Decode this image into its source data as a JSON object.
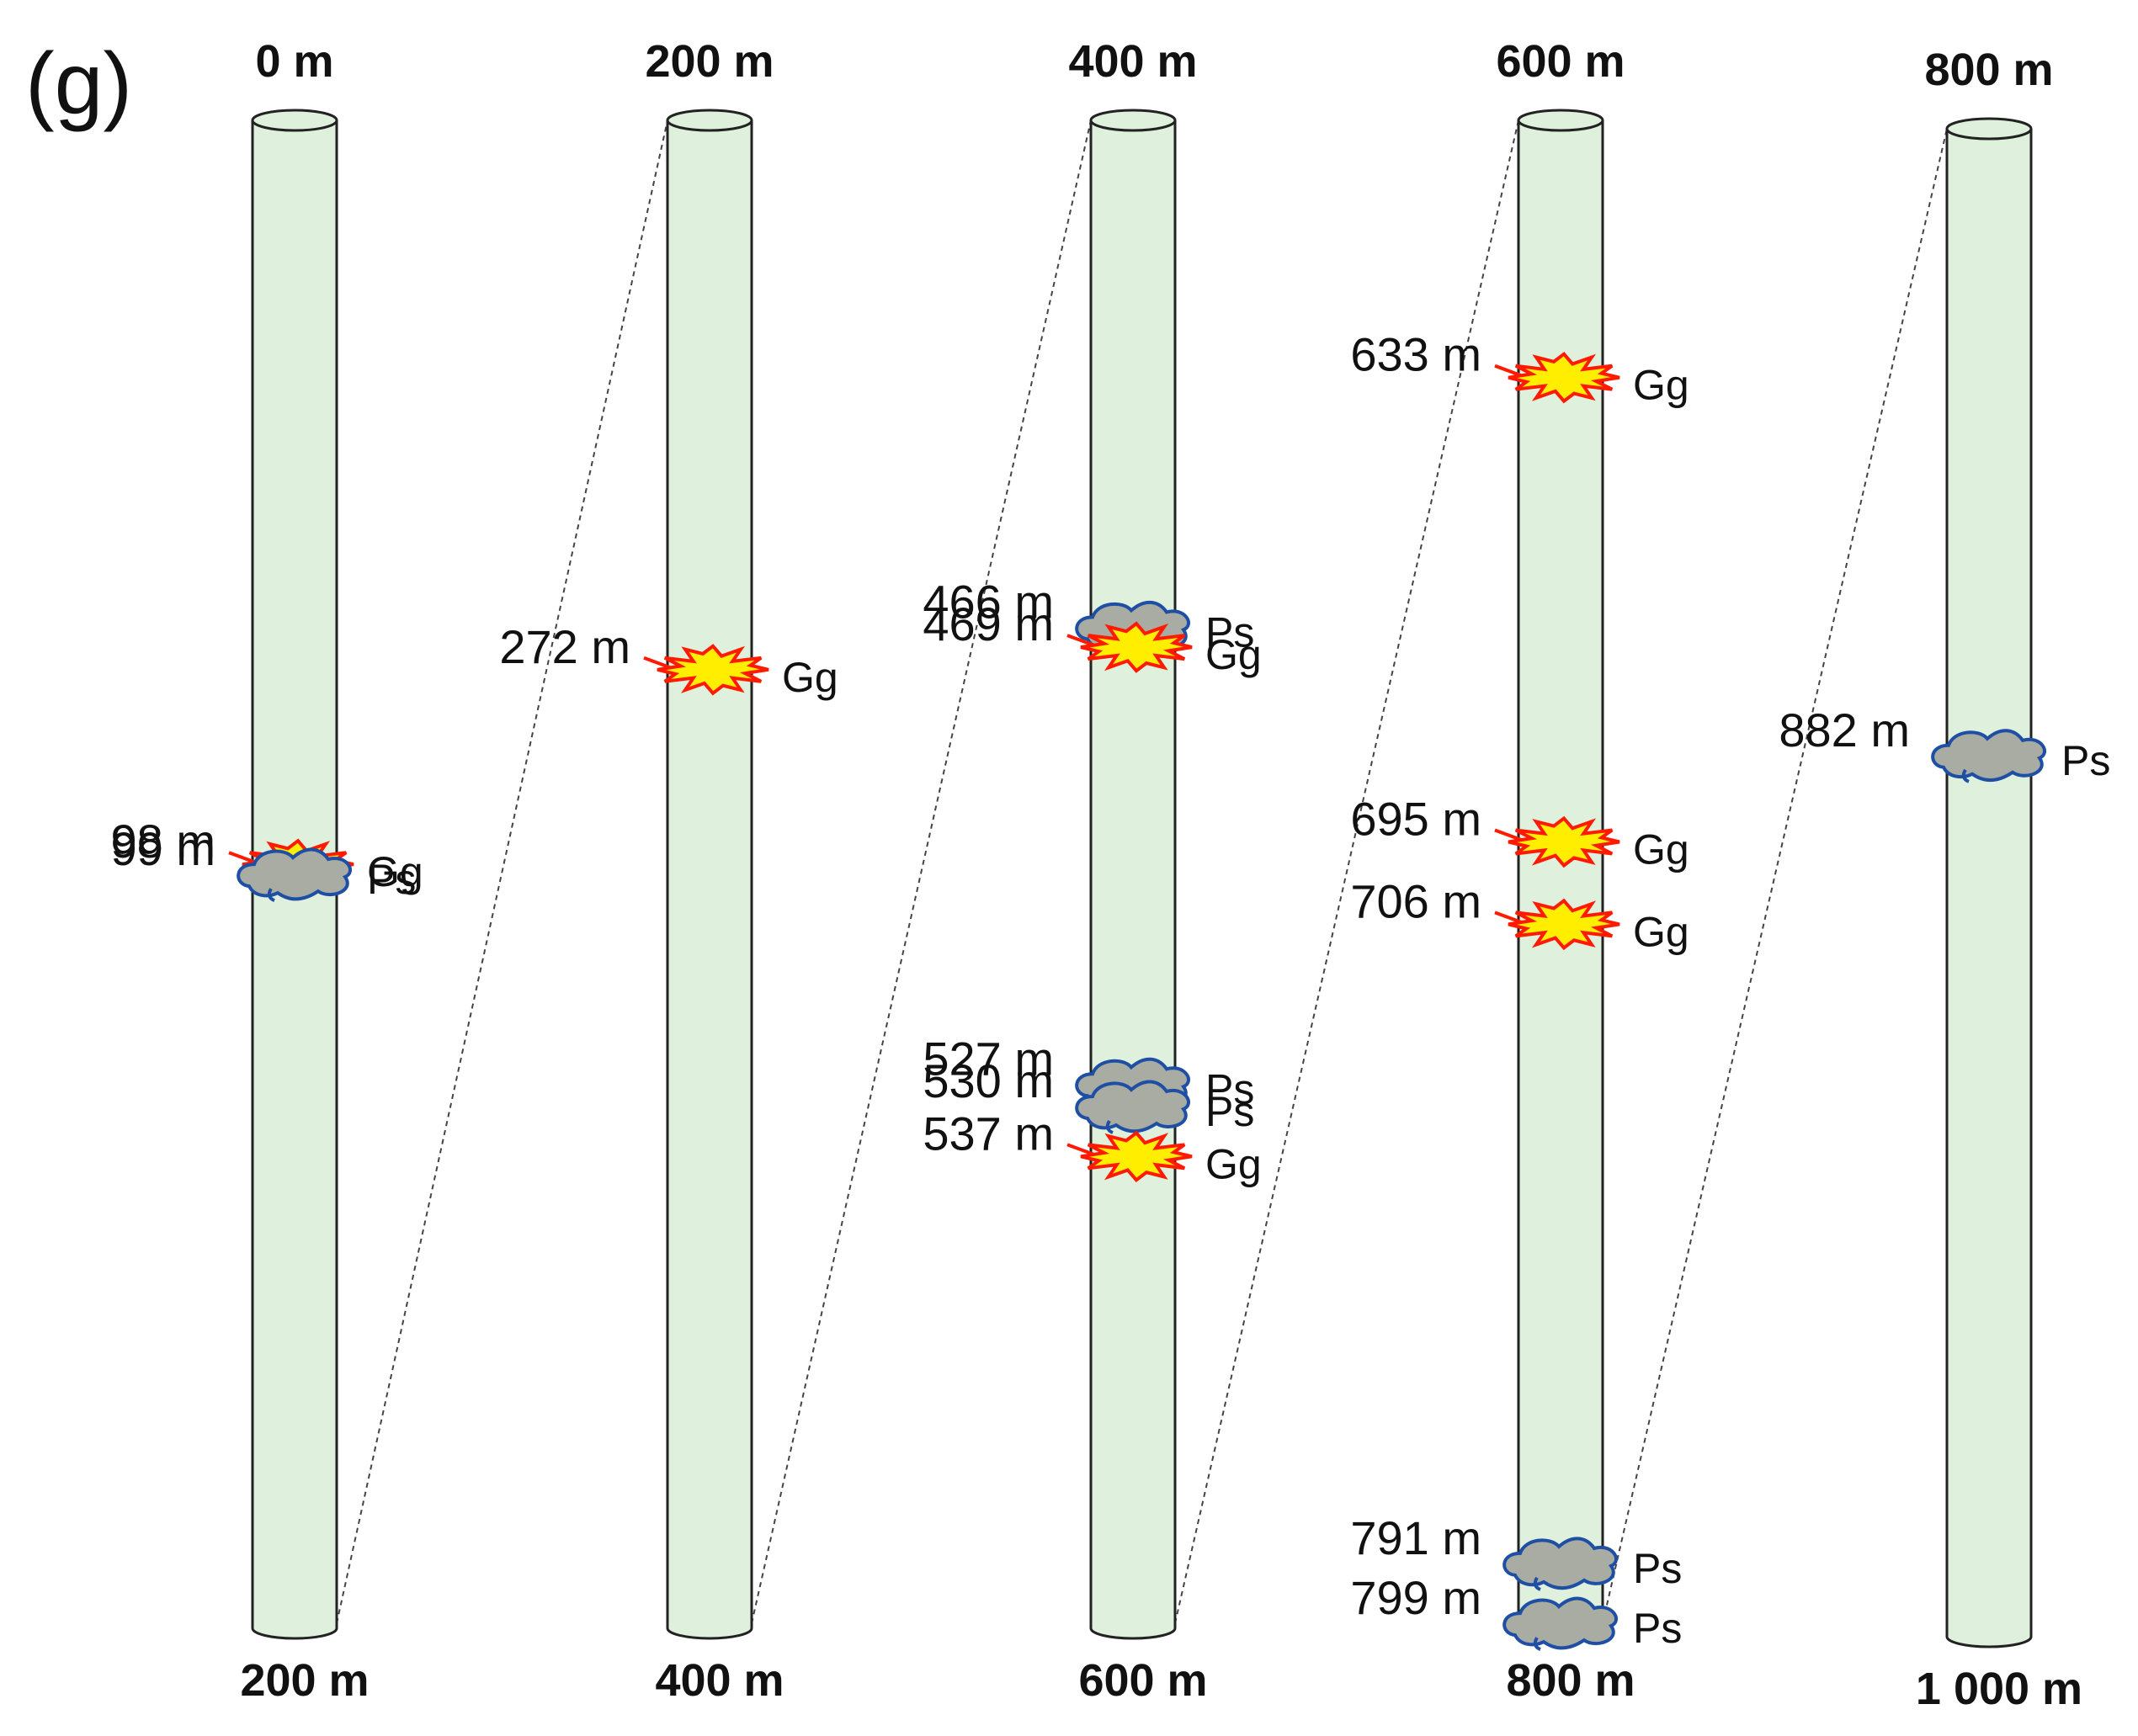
{
  "panel_label": "(g)",
  "colors": {
    "column_fill": "#dff0dc",
    "column_stroke": "#222222",
    "gg_fill": "#ffee00",
    "gg_stroke": "#ff1a00",
    "ps_fill": "#a9aca2",
    "ps_stroke": "#1f4fa5"
  },
  "columns": [
    {
      "top_label": "0 m",
      "bottom_label": "200 m",
      "events": [
        {
          "depth_label": "98 m",
          "code": "Gg",
          "type": "gg",
          "depth": 98
        },
        {
          "depth_label": "99 m",
          "code": "Ps",
          "type": "ps",
          "depth": 99
        }
      ]
    },
    {
      "top_label": "200 m",
      "bottom_label": "400 m",
      "events": [
        {
          "depth_label": "272 m",
          "code": "Gg",
          "type": "gg",
          "depth": 272
        }
      ]
    },
    {
      "top_label": "400 m",
      "bottom_label": "600 m",
      "events": [
        {
          "depth_label": "466 m",
          "code": "Ps",
          "type": "ps",
          "depth": 466
        },
        {
          "depth_label": "469 m",
          "code": "Gg",
          "type": "gg",
          "depth": 469
        },
        {
          "depth_label": "527 m",
          "code": "Ps",
          "type": "ps",
          "depth": 527
        },
        {
          "depth_label": "530 m",
          "code": "Ps",
          "type": "ps",
          "depth": 530
        },
        {
          "depth_label": "537 m",
          "code": "Gg",
          "type": "gg",
          "depth": 537
        }
      ]
    },
    {
      "top_label": "600 m",
      "bottom_label": "800 m",
      "events": [
        {
          "depth_label": "633 m",
          "code": "Gg",
          "type": "gg",
          "depth": 633
        },
        {
          "depth_label": "695 m",
          "code": "Gg",
          "type": "gg",
          "depth": 695
        },
        {
          "depth_label": "706 m",
          "code": "Gg",
          "type": "gg",
          "depth": 706
        },
        {
          "depth_label": "791 m",
          "code": "Ps",
          "type": "ps",
          "depth": 791
        },
        {
          "depth_label": "799 m",
          "code": "Ps",
          "type": "ps",
          "depth": 799
        }
      ]
    },
    {
      "top_label": "800 m",
      "bottom_label": "1 000 m",
      "events": [
        {
          "depth_label": "882 m",
          "code": "Ps",
          "type": "ps",
          "depth": 882
        }
      ]
    }
  ]
}
